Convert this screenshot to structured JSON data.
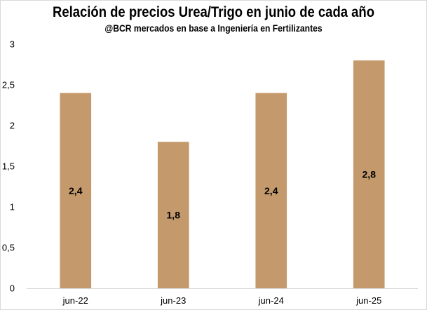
{
  "chart_data": {
    "type": "bar",
    "title": "Relación de precios Urea/Trigo en junio de cada año",
    "subtitle": "@BCR mercados en base a Ingeniería en Fertilizantes",
    "categories": [
      "jun-22",
      "jun-23",
      "jun-24",
      "jun-25"
    ],
    "values": [
      2.4,
      1.8,
      2.4,
      2.8
    ],
    "data_labels": [
      "2,4",
      "1,8",
      "2,4",
      "2,8"
    ],
    "ylim": [
      0,
      3
    ],
    "yticks": [
      0,
      0.5,
      1,
      1.5,
      2,
      2.5,
      3
    ],
    "ytick_labels": [
      "0",
      "0,5",
      "1",
      "1,5",
      "2",
      "2,5",
      "3"
    ],
    "xlabel": "",
    "ylabel": "",
    "grid": false,
    "legend": "none",
    "bar_color": "#c49a6c"
  }
}
